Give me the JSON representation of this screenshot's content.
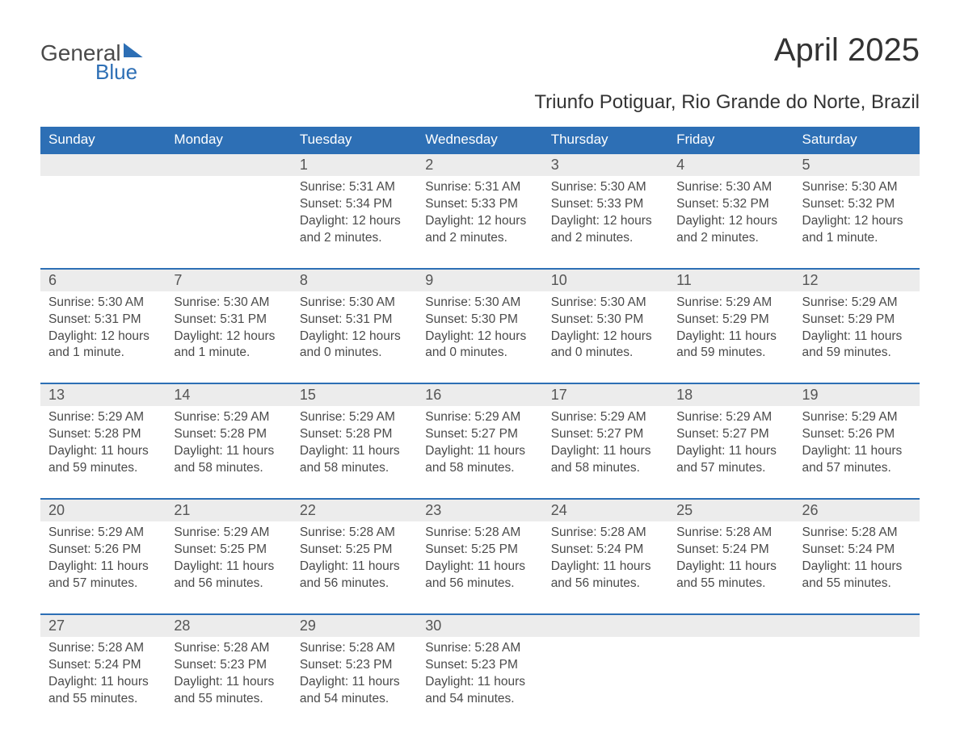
{
  "logo": {
    "general": "General",
    "blue": "Blue"
  },
  "title": "April 2025",
  "subtitle": "Triunfo Potiguar, Rio Grande do Norte, Brazil",
  "colors": {
    "header_bg": "#2d6fb5",
    "header_text": "#ffffff",
    "datenum_bg": "#ececec",
    "row_divider": "#2d6fb5",
    "body_text": "#4a4a4a",
    "page_bg": "#ffffff"
  },
  "day_headers": [
    "Sunday",
    "Monday",
    "Tuesday",
    "Wednesday",
    "Thursday",
    "Friday",
    "Saturday"
  ],
  "weeks": [
    [
      {
        "empty": true
      },
      {
        "empty": true
      },
      {
        "n": "1",
        "sunrise": "5:31 AM",
        "sunset": "5:34 PM",
        "daylight": "12 hours and 2 minutes."
      },
      {
        "n": "2",
        "sunrise": "5:31 AM",
        "sunset": "5:33 PM",
        "daylight": "12 hours and 2 minutes."
      },
      {
        "n": "3",
        "sunrise": "5:30 AM",
        "sunset": "5:33 PM",
        "daylight": "12 hours and 2 minutes."
      },
      {
        "n": "4",
        "sunrise": "5:30 AM",
        "sunset": "5:32 PM",
        "daylight": "12 hours and 2 minutes."
      },
      {
        "n": "5",
        "sunrise": "5:30 AM",
        "sunset": "5:32 PM",
        "daylight": "12 hours and 1 minute."
      }
    ],
    [
      {
        "n": "6",
        "sunrise": "5:30 AM",
        "sunset": "5:31 PM",
        "daylight": "12 hours and 1 minute."
      },
      {
        "n": "7",
        "sunrise": "5:30 AM",
        "sunset": "5:31 PM",
        "daylight": "12 hours and 1 minute."
      },
      {
        "n": "8",
        "sunrise": "5:30 AM",
        "sunset": "5:31 PM",
        "daylight": "12 hours and 0 minutes."
      },
      {
        "n": "9",
        "sunrise": "5:30 AM",
        "sunset": "5:30 PM",
        "daylight": "12 hours and 0 minutes."
      },
      {
        "n": "10",
        "sunrise": "5:30 AM",
        "sunset": "5:30 PM",
        "daylight": "12 hours and 0 minutes."
      },
      {
        "n": "11",
        "sunrise": "5:29 AM",
        "sunset": "5:29 PM",
        "daylight": "11 hours and 59 minutes."
      },
      {
        "n": "12",
        "sunrise": "5:29 AM",
        "sunset": "5:29 PM",
        "daylight": "11 hours and 59 minutes."
      }
    ],
    [
      {
        "n": "13",
        "sunrise": "5:29 AM",
        "sunset": "5:28 PM",
        "daylight": "11 hours and 59 minutes."
      },
      {
        "n": "14",
        "sunrise": "5:29 AM",
        "sunset": "5:28 PM",
        "daylight": "11 hours and 58 minutes."
      },
      {
        "n": "15",
        "sunrise": "5:29 AM",
        "sunset": "5:28 PM",
        "daylight": "11 hours and 58 minutes."
      },
      {
        "n": "16",
        "sunrise": "5:29 AM",
        "sunset": "5:27 PM",
        "daylight": "11 hours and 58 minutes."
      },
      {
        "n": "17",
        "sunrise": "5:29 AM",
        "sunset": "5:27 PM",
        "daylight": "11 hours and 58 minutes."
      },
      {
        "n": "18",
        "sunrise": "5:29 AM",
        "sunset": "5:27 PM",
        "daylight": "11 hours and 57 minutes."
      },
      {
        "n": "19",
        "sunrise": "5:29 AM",
        "sunset": "5:26 PM",
        "daylight": "11 hours and 57 minutes."
      }
    ],
    [
      {
        "n": "20",
        "sunrise": "5:29 AM",
        "sunset": "5:26 PM",
        "daylight": "11 hours and 57 minutes."
      },
      {
        "n": "21",
        "sunrise": "5:29 AM",
        "sunset": "5:25 PM",
        "daylight": "11 hours and 56 minutes."
      },
      {
        "n": "22",
        "sunrise": "5:28 AM",
        "sunset": "5:25 PM",
        "daylight": "11 hours and 56 minutes."
      },
      {
        "n": "23",
        "sunrise": "5:28 AM",
        "sunset": "5:25 PM",
        "daylight": "11 hours and 56 minutes."
      },
      {
        "n": "24",
        "sunrise": "5:28 AM",
        "sunset": "5:24 PM",
        "daylight": "11 hours and 56 minutes."
      },
      {
        "n": "25",
        "sunrise": "5:28 AM",
        "sunset": "5:24 PM",
        "daylight": "11 hours and 55 minutes."
      },
      {
        "n": "26",
        "sunrise": "5:28 AM",
        "sunset": "5:24 PM",
        "daylight": "11 hours and 55 minutes."
      }
    ],
    [
      {
        "n": "27",
        "sunrise": "5:28 AM",
        "sunset": "5:24 PM",
        "daylight": "11 hours and 55 minutes."
      },
      {
        "n": "28",
        "sunrise": "5:28 AM",
        "sunset": "5:23 PM",
        "daylight": "11 hours and 55 minutes."
      },
      {
        "n": "29",
        "sunrise": "5:28 AM",
        "sunset": "5:23 PM",
        "daylight": "11 hours and 54 minutes."
      },
      {
        "n": "30",
        "sunrise": "5:28 AM",
        "sunset": "5:23 PM",
        "daylight": "11 hours and 54 minutes."
      },
      {
        "empty": true
      },
      {
        "empty": true
      },
      {
        "empty": true
      }
    ]
  ],
  "labels": {
    "sunrise": "Sunrise: ",
    "sunset": "Sunset: ",
    "daylight": "Daylight: "
  }
}
